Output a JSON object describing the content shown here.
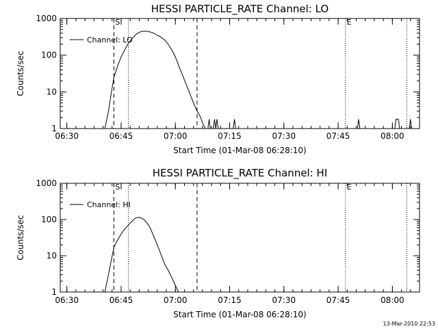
{
  "figure": {
    "footer_timestamp": "13-Mar-2010 22:53"
  },
  "chart_data": [
    {
      "type": "line",
      "title": "HESSI PARTICLE_RATE Channel: LO",
      "xlabel": "Start Time (01-Mar-08 06:28:10)",
      "ylabel": "Counts/sec",
      "yscale": "log",
      "ylim": [
        1,
        1000
      ],
      "xlim": [
        "06:28:10",
        "08:07:30"
      ],
      "xticks": [
        "06:30",
        "06:45",
        "07:00",
        "07:15",
        "07:30",
        "07:45",
        "08:00"
      ],
      "yticks": [
        "1",
        "10",
        "100",
        "1000"
      ],
      "legend": {
        "position": "top-left",
        "label": "Channel: LO"
      },
      "markers": [
        {
          "label": "S",
          "time": "06:43:00",
          "style": "dashed"
        },
        {
          "label": "",
          "time": "06:47:00",
          "style": "dotted"
        },
        {
          "label": "",
          "time": "07:06:00",
          "style": "dashed"
        },
        {
          "label": "E",
          "time": "07:47:00",
          "style": "dotted"
        },
        {
          "label": "",
          "time": "08:04:00",
          "style": "dotted"
        }
      ],
      "series": [
        {
          "name": "Channel: LO",
          "x": [
            "06:40:30",
            "06:41:30",
            "06:42:20",
            "06:43:00",
            "06:44:00",
            "06:45:00",
            "06:46:00",
            "06:47:00",
            "06:48:00",
            "06:49:00",
            "06:50:00",
            "06:51:00",
            "06:52:00",
            "06:53:00",
            "06:54:00",
            "06:55:00",
            "06:56:00",
            "06:57:00",
            "06:58:00",
            "06:59:00",
            "07:00:00",
            "07:01:00",
            "07:02:00",
            "07:03:00",
            "07:04:00",
            "07:05:00",
            "07:06:00",
            "07:07:00",
            "07:07:40",
            "07:08:20"
          ],
          "y": [
            1,
            3,
            10,
            25,
            50,
            90,
            140,
            210,
            280,
            360,
            420,
            450,
            450,
            430,
            400,
            350,
            310,
            260,
            200,
            140,
            90,
            50,
            28,
            16,
            9,
            5,
            3,
            2,
            1.3,
            1
          ]
        },
        {
          "name": "Channel: LO",
          "x": [
            "07:09:00",
            "07:09:20",
            "07:09:40"
          ],
          "y": [
            1,
            1.8,
            1
          ]
        },
        {
          "name": "Channel: LO",
          "x": [
            "07:10:30",
            "07:10:50",
            "07:11:10",
            "07:11:30",
            "07:11:50"
          ],
          "y": [
            1,
            1.8,
            1,
            1.8,
            1
          ]
        },
        {
          "name": "Channel: LO",
          "x": [
            "07:16:00",
            "07:16:20",
            "07:16:40"
          ],
          "y": [
            1,
            1.8,
            1
          ]
        },
        {
          "name": "Channel: LO",
          "x": [
            "07:50:20",
            "07:50:40",
            "07:51:00"
          ],
          "y": [
            1,
            1.8,
            1
          ]
        },
        {
          "name": "Channel: LO",
          "x": [
            "08:00:40",
            "08:01:00",
            "08:01:40",
            "08:02:00"
          ],
          "y": [
            1,
            1.8,
            1.8,
            1
          ]
        },
        {
          "name": "Channel: LO",
          "x": [
            "08:04:40",
            "08:05:00",
            "08:05:20"
          ],
          "y": [
            1,
            1.8,
            1
          ]
        }
      ]
    },
    {
      "type": "line",
      "title": "HESSI PARTICLE_RATE Channel: HI",
      "xlabel": "Start Time (01-Mar-08 06:28:10)",
      "ylabel": "Counts/sec",
      "yscale": "log",
      "ylim": [
        1,
        1000
      ],
      "xlim": [
        "06:28:10",
        "08:07:30"
      ],
      "xticks": [
        "06:30",
        "06:45",
        "07:00",
        "07:15",
        "07:30",
        "07:45",
        "08:00"
      ],
      "yticks": [
        "1",
        "10",
        "100",
        "1000"
      ],
      "legend": {
        "position": "top-left",
        "label": "Channel: HI"
      },
      "markers": [
        {
          "label": "S",
          "time": "06:43:00",
          "style": "dashed"
        },
        {
          "label": "",
          "time": "06:47:00",
          "style": "dotted"
        },
        {
          "label": "",
          "time": "07:06:00",
          "style": "dashed"
        },
        {
          "label": "E",
          "time": "07:47:00",
          "style": "dotted"
        },
        {
          "label": "",
          "time": "08:04:00",
          "style": "dotted"
        }
      ],
      "series": [
        {
          "name": "Channel: HI",
          "x": [
            "06:40:30",
            "06:41:30",
            "06:42:20",
            "06:43:00",
            "06:44:00",
            "06:45:00",
            "06:46:00",
            "06:47:00",
            "06:48:00",
            "06:49:00",
            "06:50:00",
            "06:51:00",
            "06:52:00",
            "06:53:00",
            "06:54:00",
            "06:55:00",
            "06:56:00",
            "06:57:00",
            "06:58:00",
            "06:59:00",
            "06:59:40",
            "07:00:20",
            "07:00:50"
          ],
          "y": [
            1,
            3,
            8,
            17,
            27,
            40,
            55,
            70,
            90,
            110,
            115,
            105,
            85,
            60,
            35,
            20,
            11,
            6,
            4,
            2.5,
            1.8,
            1.3,
            1
          ]
        }
      ]
    }
  ]
}
